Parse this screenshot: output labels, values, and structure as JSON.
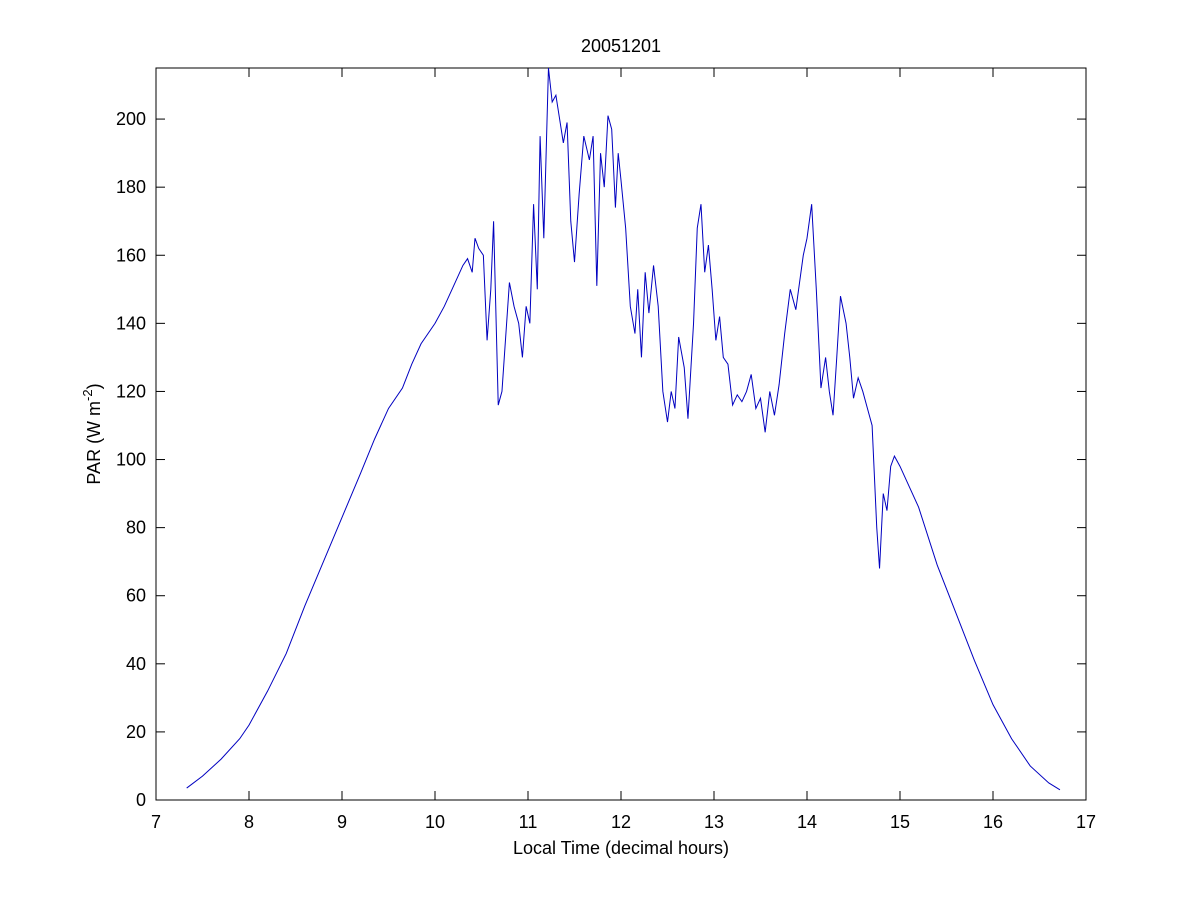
{
  "chart_data": {
    "type": "line",
    "title": "20051201",
    "xlabel": "Local Time (decimal hours)",
    "ylabel": [
      "PAR (W m",
      "-2",
      ")"
    ],
    "x": [
      7.33,
      7.5,
      7.7,
      7.9,
      8.0,
      8.2,
      8.4,
      8.6,
      8.8,
      9.0,
      9.2,
      9.35,
      9.5,
      9.65,
      9.75,
      9.85,
      10.0,
      10.1,
      10.2,
      10.3,
      10.35,
      10.4,
      10.43,
      10.47,
      10.52,
      10.56,
      10.6,
      10.63,
      10.68,
      10.72,
      10.8,
      10.85,
      10.9,
      10.94,
      10.98,
      11.02,
      11.06,
      11.1,
      11.13,
      11.17,
      11.22,
      11.26,
      11.3,
      11.34,
      11.38,
      11.42,
      11.46,
      11.5,
      11.55,
      11.6,
      11.66,
      11.7,
      11.74,
      11.78,
      11.82,
      11.86,
      11.9,
      11.94,
      11.97,
      12.0,
      12.05,
      12.1,
      12.15,
      12.18,
      12.22,
      12.26,
      12.3,
      12.35,
      12.4,
      12.45,
      12.5,
      12.54,
      12.58,
      12.62,
      12.68,
      12.72,
      12.78,
      12.82,
      12.86,
      12.9,
      12.94,
      12.98,
      13.02,
      13.06,
      13.1,
      13.15,
      13.2,
      13.25,
      13.3,
      13.35,
      13.4,
      13.45,
      13.5,
      13.55,
      13.6,
      13.65,
      13.7,
      13.76,
      13.82,
      13.88,
      13.92,
      13.96,
      14.0,
      14.05,
      14.1,
      14.15,
      14.2,
      14.24,
      14.28,
      14.32,
      14.36,
      14.42,
      14.46,
      14.5,
      14.55,
      14.6,
      14.65,
      14.7,
      14.75,
      14.78,
      14.82,
      14.86,
      14.9,
      14.94,
      15.0,
      15.2,
      15.4,
      15.6,
      15.8,
      16.0,
      16.2,
      16.4,
      16.6,
      16.72
    ],
    "series": [
      {
        "name": "PAR",
        "color": "#0000c0",
        "values": [
          3.5,
          7,
          12,
          18,
          22,
          32,
          43,
          57,
          70,
          83,
          96,
          106,
          115,
          121,
          128,
          134,
          140,
          145,
          151,
          157,
          159,
          155,
          165,
          162,
          160,
          135,
          150,
          170,
          116,
          120,
          152,
          145,
          140,
          130,
          145,
          140,
          175,
          150,
          195,
          165,
          215,
          205,
          207,
          200,
          193,
          199,
          170,
          158,
          178,
          195,
          188,
          195,
          151,
          190,
          180,
          201,
          197,
          174,
          190,
          182,
          168,
          145,
          137,
          150,
          130,
          155,
          143,
          157,
          145,
          120,
          111,
          120,
          115,
          136,
          127,
          112,
          140,
          168,
          175,
          155,
          163,
          150,
          135,
          142,
          130,
          128,
          116,
          119,
          117,
          120,
          125,
          115,
          118,
          108,
          120,
          113,
          122,
          137,
          150,
          144,
          152,
          160,
          165,
          175,
          150,
          121,
          130,
          120,
          113,
          130,
          148,
          140,
          130,
          118,
          124,
          120,
          115,
          110,
          80,
          68,
          90,
          85,
          98,
          101,
          98,
          86,
          69,
          55,
          41,
          28,
          18,
          10,
          5,
          3
        ]
      }
    ],
    "xlim": [
      7,
      17
    ],
    "ylim": [
      0,
      215
    ],
    "xticks": [
      7,
      8,
      9,
      10,
      11,
      12,
      13,
      14,
      15,
      16,
      17
    ],
    "yticks": [
      0,
      20,
      40,
      60,
      80,
      100,
      120,
      140,
      160,
      180,
      200
    ]
  }
}
